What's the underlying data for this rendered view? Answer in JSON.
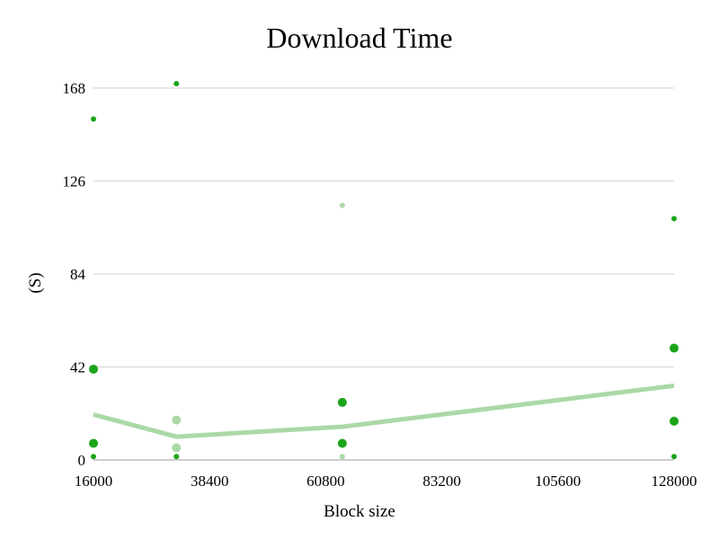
{
  "chart_data": {
    "type": "scatter",
    "title": "Download Time",
    "xlabel": "Block size",
    "ylabel": "(S)",
    "xlim": [
      16000,
      128000
    ],
    "ylim": [
      0,
      168
    ],
    "x_ticks": [
      "16000",
      "38400",
      "60800",
      "83200",
      "105600",
      "128000"
    ],
    "y_ticks": [
      "0",
      "42",
      "84",
      "126",
      "168"
    ],
    "grid": true,
    "legend": "none",
    "colors": {
      "dark": "#1aa51a",
      "light": "#aad9a6",
      "grid": "#d9d9d9"
    },
    "scatter_points": [
      {
        "x": 16000,
        "y": 154,
        "size": "small",
        "color": "dark"
      },
      {
        "x": 16000,
        "y": 41,
        "size": "large",
        "color": "dark"
      },
      {
        "x": 16000,
        "y": 7.5,
        "size": "large",
        "color": "dark"
      },
      {
        "x": 16000,
        "y": 1.5,
        "size": "small",
        "color": "dark"
      },
      {
        "x": 32000,
        "y": 170,
        "size": "small",
        "color": "dark"
      },
      {
        "x": 32000,
        "y": 18,
        "size": "large",
        "color": "light"
      },
      {
        "x": 32000,
        "y": 5.5,
        "size": "large",
        "color": "light"
      },
      {
        "x": 32000,
        "y": 1.5,
        "size": "small",
        "color": "dark"
      },
      {
        "x": 64000,
        "y": 115,
        "size": "small",
        "color": "light"
      },
      {
        "x": 64000,
        "y": 26,
        "size": "large",
        "color": "dark"
      },
      {
        "x": 64000,
        "y": 7.5,
        "size": "large",
        "color": "dark"
      },
      {
        "x": 64000,
        "y": 1.5,
        "size": "small",
        "color": "light"
      },
      {
        "x": 128000,
        "y": 109,
        "size": "small",
        "color": "dark"
      },
      {
        "x": 128000,
        "y": 50.5,
        "size": "large",
        "color": "dark"
      },
      {
        "x": 128000,
        "y": 17.5,
        "size": "large",
        "color": "dark"
      },
      {
        "x": 128000,
        "y": 1.5,
        "size": "small",
        "color": "dark"
      }
    ],
    "line": {
      "color": "light",
      "x": [
        16000,
        32000,
        64000,
        128000
      ],
      "y": [
        20.5,
        10.5,
        15,
        33.5
      ]
    }
  }
}
